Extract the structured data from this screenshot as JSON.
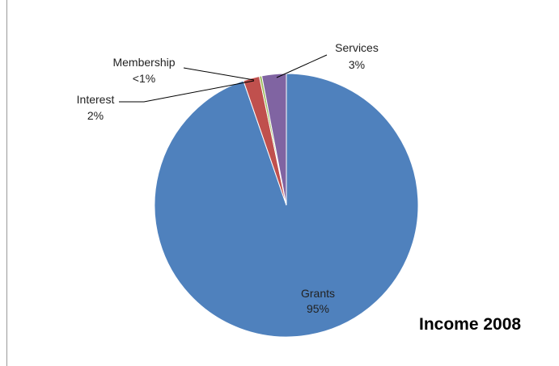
{
  "chart_data": {
    "type": "pie",
    "title": "Income 2008",
    "slices": [
      {
        "name": "Grants",
        "value": 95,
        "label": "95%",
        "color": "#4F81BD"
      },
      {
        "name": "Interest",
        "value": 2,
        "label": "2%",
        "color": "#C0504D"
      },
      {
        "name": "Membership",
        "value": 0.3,
        "label": "<1%",
        "color": "#9BBB59"
      },
      {
        "name": "Services",
        "value": 3,
        "label": "3%",
        "color": "#8064A2"
      }
    ]
  }
}
